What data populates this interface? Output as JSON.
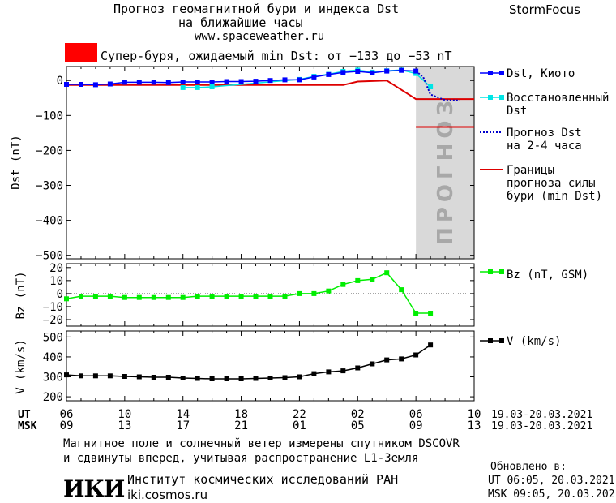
{
  "header": {
    "title_line1": "Прогноз геомагнитной бури и индекса Dst",
    "title_line2": "на ближайшие часы",
    "website": "www.spaceweather.ru",
    "brand": "StormFocus"
  },
  "warning": {
    "text": "Супер-буря, ожидаемый min Dst: от −133 до −53 nT",
    "color": "#ff0000"
  },
  "forecast_label": "ПРОГНОЗ",
  "legend": {
    "dst_kyoto": "Dst, Киото",
    "restored_line1": "Восстановленный",
    "restored_line2": "Dst",
    "forecast_line1": "Прогноз Dst",
    "forecast_line2": "на 2-4 часа",
    "bounds_line1": "Границы",
    "bounds_line2": "прогноза силы",
    "bounds_line3": "бури (min Dst)",
    "bz": "Bz (nT, GSM)",
    "v": "V (km/s)"
  },
  "time_axis": {
    "ut_label": "UT",
    "msk_label": "MSK",
    "ut_ticks": [
      "06",
      "10",
      "14",
      "18",
      "22",
      "02",
      "06",
      "10"
    ],
    "msk_ticks": [
      "09",
      "13",
      "17",
      "21",
      "01",
      "05",
      "09",
      "13"
    ],
    "ut_range": "19.03-20.03.2021",
    "msk_range": "19.03-20.03.2021"
  },
  "footer": {
    "note_line1": "Магнитное поле и солнечный ветер измерены спутником DSCOVR",
    "note_line2": "и сдвинуты вперед, учитывая распространение L1-Земля",
    "logo_text": "ИКИ",
    "institute": "Институт космических исследований РАН",
    "institute_web": "iki.cosmos.ru",
    "updated_label": "Обновлено в:",
    "updated_ut": "UT  06:05, 20.03.2021",
    "updated_msk": "MSK 09:05, 20.03.2021"
  },
  "chart_data": [
    {
      "type": "line",
      "panel": "dst",
      "ylabel": "Dst (nT)",
      "ylim": [
        -510,
        40
      ],
      "yticks": [
        0,
        -100,
        -200,
        -300,
        -400,
        -500
      ],
      "xlim": [
        6,
        34
      ],
      "forecast_region": [
        30,
        34
      ],
      "series": [
        {
          "name": "Dst, Киото",
          "color": "#0000ff",
          "x": [
            6,
            7,
            8,
            9,
            10,
            11,
            12,
            13,
            14,
            15,
            16,
            17,
            18,
            19,
            20,
            21,
            22,
            23,
            24,
            25,
            26,
            27,
            28,
            29,
            30
          ],
          "y": [
            -11,
            -11,
            -12,
            -10,
            -5,
            -5,
            -5,
            -6,
            -4,
            -4,
            -4,
            -3,
            -3,
            -2,
            0,
            2,
            2,
            10,
            17,
            23,
            26,
            22,
            27,
            29,
            27
          ]
        },
        {
          "name": "Восстановленный Dst",
          "color": "#00e5e5",
          "x": [
            14,
            15,
            16,
            22,
            23,
            24,
            25,
            26,
            27,
            28,
            29,
            30,
            31
          ],
          "y": [
            -20,
            -20,
            -18,
            3,
            12,
            18,
            26,
            30,
            24,
            28,
            30,
            20,
            -18
          ]
        },
        {
          "name": "Прогноз Dst на 2-4 часа",
          "color": "#0000cc",
          "x": [
            30,
            30.5,
            31,
            32,
            33
          ],
          "y": [
            27,
            10,
            -40,
            -56,
            -57
          ]
        },
        {
          "name": "Границы прогноза силы бури (min Dst)",
          "color": "#dd0000",
          "segments": [
            {
              "x": [
                6,
                25,
                26,
                28,
                30,
                34
              ],
              "y": [
                -13,
                -13,
                -3,
                0,
                -53,
                -53
              ]
            },
            {
              "x": [
                30,
                34
              ],
              "y": [
                -133,
                -133
              ]
            }
          ]
        }
      ]
    },
    {
      "type": "line",
      "panel": "bz",
      "ylabel": "Bz (nT)",
      "ylim": [
        -25,
        23
      ],
      "yticks": [
        20,
        10,
        0,
        -10,
        -20
      ],
      "xlim": [
        6,
        34
      ],
      "series": [
        {
          "name": "Bz (nT, GSM)",
          "color": "#00ee00",
          "x": [
            6,
            7,
            8,
            9,
            10,
            11,
            12,
            13,
            14,
            15,
            16,
            17,
            18,
            19,
            20,
            21,
            22,
            23,
            24,
            25,
            26,
            27,
            28,
            29,
            30,
            31
          ],
          "y": [
            -4,
            -2,
            -2,
            -2,
            -3,
            -3,
            -3,
            -3,
            -3,
            -2,
            -2,
            -2,
            -2,
            -2,
            -2,
            -2,
            0,
            0,
            2,
            7,
            10,
            11,
            16,
            3,
            -15,
            -15
          ]
        }
      ]
    },
    {
      "type": "line",
      "panel": "v",
      "ylabel": "V (km/s)",
      "ylim": [
        180,
        530
      ],
      "yticks": [
        500,
        400,
        300,
        200
      ],
      "xlim": [
        6,
        34
      ],
      "series": [
        {
          "name": "V (km/s)",
          "color": "#000000",
          "x": [
            6,
            7,
            8,
            9,
            10,
            11,
            12,
            13,
            14,
            15,
            16,
            17,
            18,
            19,
            20,
            21,
            22,
            23,
            24,
            25,
            26,
            27,
            28,
            29,
            30,
            31
          ],
          "y": [
            310,
            305,
            305,
            305,
            302,
            300,
            298,
            298,
            294,
            292,
            290,
            290,
            290,
            292,
            294,
            296,
            300,
            316,
            325,
            330,
            345,
            365,
            385,
            390,
            410,
            460
          ]
        }
      ]
    }
  ]
}
